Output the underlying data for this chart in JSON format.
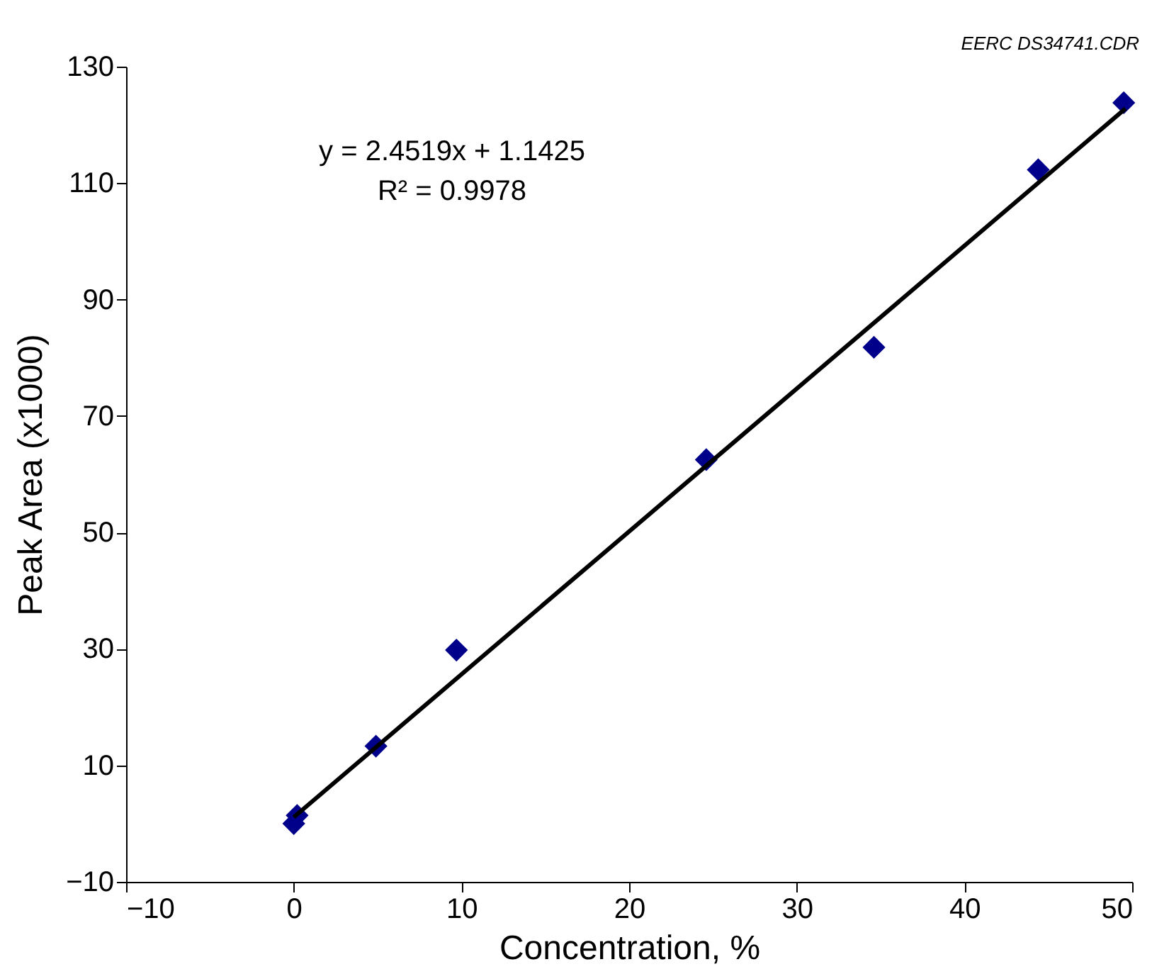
{
  "chart_data": {
    "type": "scatter",
    "xlabel": "Concentration, %",
    "ylabel": "Peak Area (x1000)",
    "xlim": [
      -10,
      50
    ],
    "xticks": [
      -10,
      0,
      10,
      20,
      30,
      40,
      50
    ],
    "ylim": [
      -10,
      130
    ],
    "yticks": [
      -10,
      10,
      30,
      50,
      70,
      90,
      110,
      130
    ],
    "grid": false,
    "annotations": [
      "EERC DS34741.CDR",
      "y = 2.4519x + 1.1425",
      "R² = 0.9978"
    ],
    "series": [
      {
        "color": "#00008b",
        "marker": "diamond",
        "x": [
          0,
          0.2,
          4.9,
          9.7,
          24.6,
          34.6,
          44.4,
          49.5
        ],
        "values": [
          0,
          1.4,
          13.3,
          29.8,
          62.5,
          81.8,
          112.3,
          123.8
        ]
      },
      {
        "type": "line",
        "color": "#000000",
        "line_style": "solid",
        "x": [
          0,
          49.6
        ],
        "values": [
          1.1,
          122.8
        ]
      }
    ]
  }
}
